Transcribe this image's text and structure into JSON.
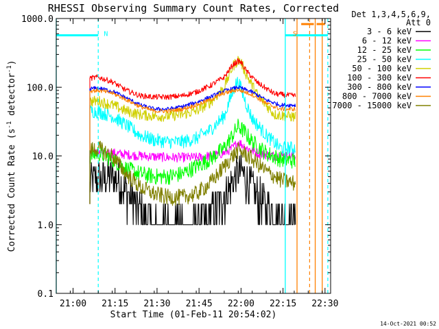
{
  "chart_data": {
    "type": "line",
    "title": "RHESSI Observing Summary Count Rates, Corrected",
    "xlabel": "Start Time (01-Feb-11 20:54:02)",
    "ylabel_main": "Corrected Count Rate (s",
    "ylabel_sup1": "-1",
    "ylabel_mid": " detector",
    "ylabel_sup2": "-1",
    "ylabel_end": ")",
    "yscale": "log",
    "ylim": [
      0.1,
      1000
    ],
    "x_unit": "minutes since 20:54:02",
    "xlim": [
      0,
      98
    ],
    "x_ticks": [
      {
        "x": 6,
        "label": "21:00"
      },
      {
        "x": 21,
        "label": "21:15"
      },
      {
        "x": 36,
        "label": "21:30"
      },
      {
        "x": 51,
        "label": "21:45"
      },
      {
        "x": 66,
        "label": "22:00"
      },
      {
        "x": 81,
        "label": "22:15"
      },
      {
        "x": 96,
        "label": "22:30"
      }
    ],
    "y_ticks": [
      {
        "y": 0.1,
        "label": "0.1"
      },
      {
        "y": 1,
        "label": "1.0"
      },
      {
        "y": 10,
        "label": "10.0"
      },
      {
        "y": 100,
        "label": "100.0"
      },
      {
        "y": 1000,
        "label": "1000.0"
      }
    ],
    "legend_header": [
      "Det 1,3,4,5,6,9,",
      "Att 0"
    ],
    "legend_position": "right",
    "data_x_range": [
      12,
      85.5
    ],
    "flare_peak_x": 65,
    "series": [
      {
        "name": "3 - 6 keV",
        "color": "#000000",
        "x": [
          12,
          15,
          20,
          22,
          25,
          28,
          30,
          35,
          40,
          45,
          50,
          55,
          58,
          61,
          63,
          65,
          66,
          67,
          69,
          72,
          75,
          78,
          80,
          82,
          85
        ],
        "values": [
          4.2,
          4.6,
          5.0,
          4.5,
          3.0,
          2.0,
          1.5,
          1.0,
          1.0,
          1.0,
          1.0,
          1.3,
          2.0,
          3.0,
          4.2,
          5.5,
          6.0,
          5.2,
          3.8,
          2.5,
          1.8,
          1.4,
          1.2,
          1.1,
          1.1
        ],
        "noise": 0.3
      },
      {
        "name": "6 - 12 keV",
        "color": "#ff00ff",
        "x": [
          12,
          20,
          30,
          40,
          50,
          55,
          60,
          63,
          65,
          66,
          68,
          72,
          78,
          85
        ],
        "values": [
          11,
          11,
          10,
          9.5,
          9.5,
          10,
          11,
          13,
          16,
          15,
          13,
          11,
          10,
          10
        ],
        "noise": 0.07
      },
      {
        "name": "12 - 25 keV",
        "color": "#00ff00",
        "x": [
          12,
          15,
          20,
          25,
          30,
          35,
          40,
          45,
          50,
          55,
          60,
          63,
          65,
          67,
          70,
          75,
          80,
          85
        ],
        "values": [
          10,
          11,
          9,
          6.5,
          5.5,
          5.0,
          5.0,
          5.5,
          7.0,
          9.0,
          13,
          20,
          27,
          23,
          16,
          11,
          9,
          8.5
        ],
        "noise": 0.12
      },
      {
        "name": "25 - 50 keV",
        "color": "#00ffff",
        "x": [
          12,
          15,
          20,
          25,
          30,
          35,
          40,
          45,
          50,
          55,
          60,
          62,
          64,
          65,
          66,
          68,
          70,
          75,
          80,
          85
        ],
        "values": [
          45,
          44,
          38,
          28,
          20,
          17,
          16,
          16,
          18,
          24,
          38,
          65,
          110,
          120,
          95,
          55,
          35,
          20,
          13,
          13
        ],
        "noise": 0.1
      },
      {
        "name": "50 - 100 keV",
        "color": "#d0d000",
        "x": [
          12,
          15,
          20,
          25,
          30,
          35,
          40,
          45,
          50,
          55,
          60,
          63,
          65,
          66,
          68,
          72,
          78,
          85
        ],
        "values": [
          62,
          63,
          55,
          45,
          40,
          38,
          38,
          40,
          45,
          60,
          100,
          200,
          250,
          230,
          150,
          75,
          40,
          37
        ],
        "noise": 0.08
      },
      {
        "name": "100 - 300 keV",
        "color": "#ff0000",
        "x": [
          12,
          15,
          20,
          25,
          30,
          35,
          40,
          45,
          50,
          55,
          60,
          63,
          65,
          66,
          68,
          72,
          78,
          85
        ],
        "values": [
          135,
          140,
          120,
          90,
          75,
          72,
          72,
          75,
          85,
          105,
          140,
          210,
          240,
          230,
          170,
          115,
          80,
          75
        ],
        "noise": 0.04
      },
      {
        "name": "300 - 800 keV",
        "color": "#0000ff",
        "x": [
          12,
          15,
          20,
          25,
          30,
          35,
          40,
          45,
          50,
          55,
          60,
          65,
          70,
          75,
          80,
          85
        ],
        "values": [
          95,
          97,
          88,
          70,
          55,
          48,
          48,
          52,
          60,
          72,
          88,
          100,
          85,
          65,
          55,
          55
        ],
        "noise": 0.03
      },
      {
        "name": "800 - 7000 keV",
        "color": "#ff8000",
        "x": [
          12,
          15,
          20,
          25,
          30,
          35,
          40,
          45,
          50,
          55,
          60,
          65,
          70,
          75,
          80,
          85
        ],
        "values": [
          88,
          90,
          82,
          66,
          52,
          45,
          45,
          48,
          55,
          66,
          82,
          92,
          78,
          58,
          48,
          48
        ],
        "noise": 0.03
      },
      {
        "name": "7000 - 15000 keV",
        "color": "#808000",
        "x": [
          12,
          15,
          20,
          25,
          30,
          35,
          40,
          45,
          50,
          55,
          60,
          63,
          65,
          67,
          70,
          75,
          80,
          85
        ],
        "values": [
          12,
          13,
          10,
          5.5,
          3.5,
          2.8,
          2.5,
          2.5,
          2.8,
          4.0,
          7.0,
          10,
          12,
          11,
          9,
          6,
          4.5,
          4
        ],
        "noise": 0.12
      }
    ],
    "markers": [
      {
        "label": "N",
        "color": "#00ffff",
        "line_x": [
          0,
          13
        ],
        "start_x": 0,
        "end_x": 15,
        "level": 570
      },
      {
        "label": "S",
        "color": "#00ffff",
        "line_x": [
          0,
          13
        ],
        "start_x": 81.8,
        "end_x": 97,
        "level": 570
      },
      {
        "label": "",
        "color": "#ff8000",
        "line_x": [
          0,
          13
        ],
        "start_x": 86,
        "end_x": 92.5,
        "level": 570
      },
      {
        "label": "",
        "color": "#ff8000",
        "line_x": [
          0,
          13
        ],
        "start_x": 92.5,
        "end_x": 95,
        "level": 570
      }
    ],
    "marker_bars": [
      {
        "color": "#00ffff",
        "x1": 0,
        "x2": 15,
        "level": 570
      },
      {
        "color": "#00ffff",
        "x1": 81.8,
        "x2": 97,
        "level": 570
      },
      {
        "color": "#ff8000",
        "x1": 87.5,
        "x2": 92,
        "level": 830
      },
      {
        "color": "#ff8000",
        "x1": 93,
        "x2": 96,
        "level": 830
      }
    ],
    "vlines_solid": [
      {
        "x": 0,
        "color": "#00ffff"
      },
      {
        "x": 81.8,
        "color": "#00ffff"
      },
      {
        "x": 86,
        "color": "#ff8000"
      },
      {
        "x": 92.5,
        "color": "#ff8000"
      },
      {
        "x": 95,
        "color": "#ff8000"
      }
    ],
    "vlines_dashed": [
      {
        "x": 15,
        "color": "#00ffff"
      },
      {
        "x": 97,
        "color": "#00ffff"
      },
      {
        "x": 90.5,
        "color": "#ff8000"
      }
    ],
    "marker_labels": [
      {
        "text": "N",
        "color": "#00ffff",
        "x": 17
      },
      {
        "text": "S",
        "color": "#ff8000",
        "x": 84.5
      }
    ]
  },
  "footer": {
    "timestamp": "14-Oct-2021 00:52"
  }
}
